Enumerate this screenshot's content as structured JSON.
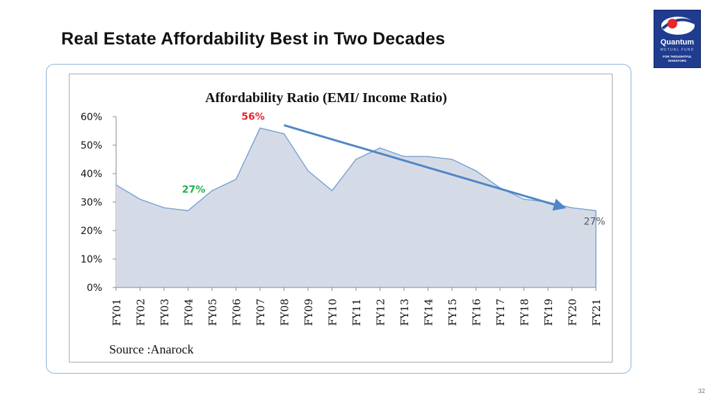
{
  "slide": {
    "title": "Real Estate Affordability Best in Two Decades",
    "page_number": "32"
  },
  "logo": {
    "name": "Quantum",
    "sub": "MUTUAL FUND",
    "tagline_1": "FOR THOUGHTFUL",
    "tagline_2": "INVESTORS",
    "colors": {
      "background": "#1f3c8f",
      "accent": "#e8262b"
    }
  },
  "chart_data": {
    "type": "area",
    "title": "Affordability  Ratio (EMI/ Income Ratio)",
    "xlabel": "",
    "ylabel": "",
    "categories": [
      "FY01",
      "FY02",
      "FY03",
      "FY04",
      "FY05",
      "FY06",
      "FY07",
      "FY08",
      "FY09",
      "FY10",
      "FY11",
      "FY12",
      "FY13",
      "FY14",
      "FY15",
      "FY16",
      "FY17",
      "FY18",
      "FY19",
      "FY20",
      "FY21"
    ],
    "values": [
      36,
      31,
      28,
      27,
      34,
      38,
      56,
      54,
      41,
      34,
      45,
      49,
      46,
      46,
      45,
      41,
      35,
      31,
      30,
      28,
      27
    ],
    "ylim": [
      0,
      60
    ],
    "yticks": [
      "0%",
      "10%",
      "20%",
      "30%",
      "40%",
      "50%",
      "60%"
    ],
    "grid": false,
    "legend": "none",
    "annotations": {
      "low": {
        "text": "27%",
        "category": "FY04",
        "color": "#22b14c"
      },
      "peak": {
        "text": "56%",
        "category": "FY07",
        "color": "#e8262b"
      },
      "latest": {
        "text": "27%",
        "category": "FY21",
        "color": "#555555"
      }
    },
    "trend_arrow": {
      "from_category": "FY08",
      "from_value": 57,
      "to_category": "FY20",
      "to_value": 28,
      "color": "#4f86c6"
    },
    "colors": {
      "fill": "#d5dbe6",
      "line": "#7ba3d3"
    },
    "source": "Source :Anarock"
  }
}
